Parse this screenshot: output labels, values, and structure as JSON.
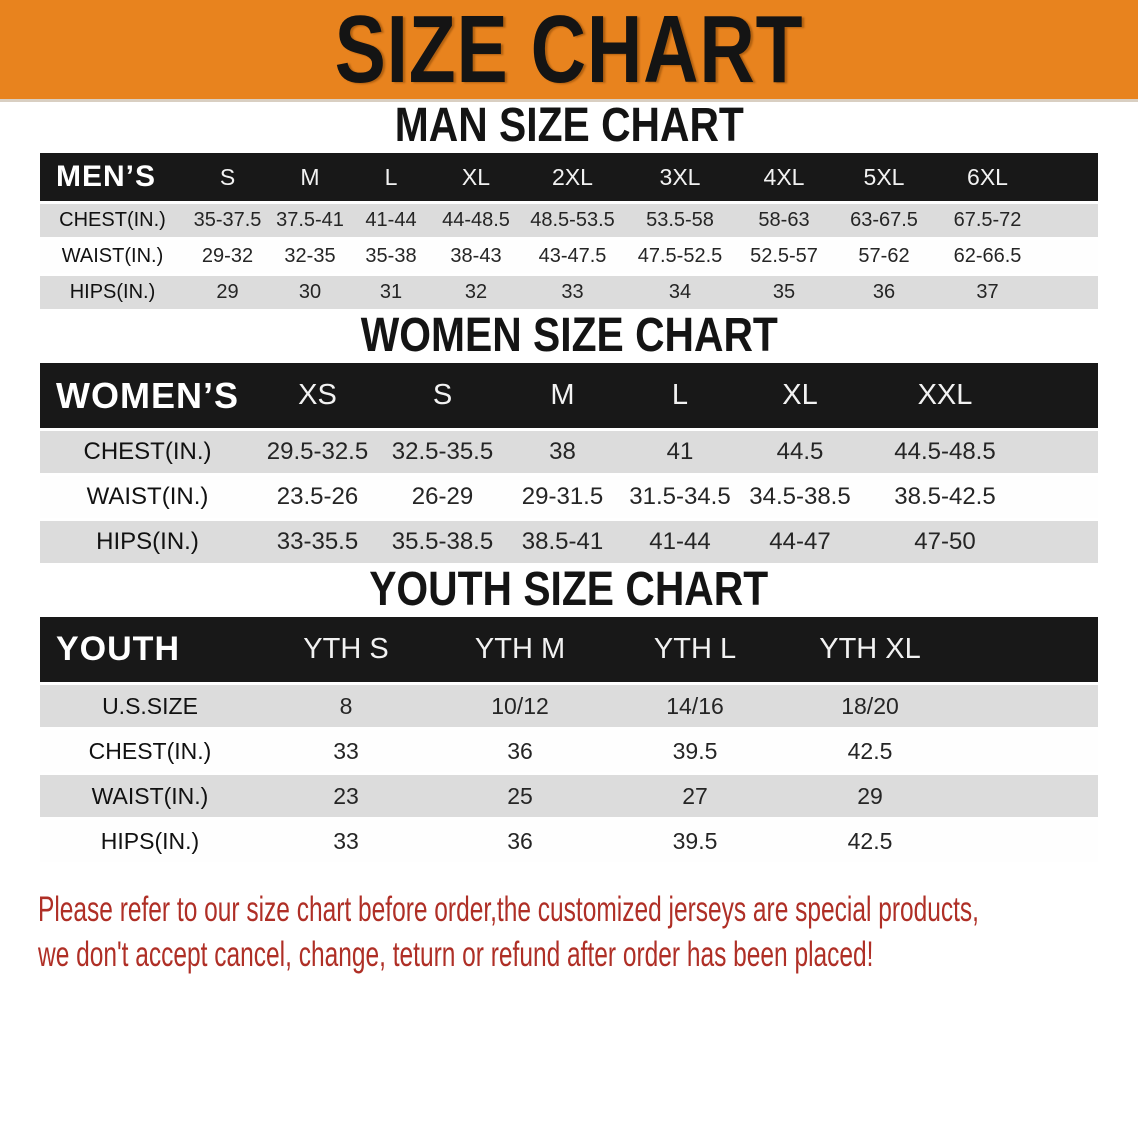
{
  "colors": {
    "banner_bg": "#E8831E",
    "bar_bg": "#181818",
    "row_alt": "#DCDCDC",
    "disclaimer": "#AF2F26"
  },
  "banner": {
    "title": "SIZE CHART"
  },
  "sections": [
    {
      "heading": "MAN SIZE CHART",
      "corner_label": "MEN’S",
      "columns": [
        "S",
        "M",
        "L",
        "XL",
        "2XL",
        "3XL",
        "4XL",
        "5XL",
        "6XL"
      ],
      "rows": [
        {
          "label": "CHEST(IN.)",
          "values": [
            "35-37.5",
            "37.5-41",
            "41-44",
            "44-48.5",
            "48.5-53.5",
            "53.5-58",
            "58-63",
            "63-67.5",
            "67.5-72"
          ]
        },
        {
          "label": "WAIST(IN.)",
          "values": [
            "29-32",
            "32-35",
            "35-38",
            "38-43",
            "43-47.5",
            "47.5-52.5",
            "52.5-57",
            "57-62",
            "62-66.5"
          ]
        },
        {
          "label": "HIPS(IN.)",
          "values": [
            "29",
            "30",
            "31",
            "32",
            "33",
            "34",
            "35",
            "36",
            "37"
          ]
        }
      ]
    },
    {
      "heading": "WOMEN SIZE CHART",
      "corner_label": "WOMEN’S",
      "columns": [
        "XS",
        "S",
        "M",
        "L",
        "XL",
        "XXL"
      ],
      "rows": [
        {
          "label": "CHEST(IN.)",
          "values": [
            "29.5-32.5",
            "32.5-35.5",
            "38",
            "41",
            "44.5",
            "44.5-48.5"
          ]
        },
        {
          "label": "WAIST(IN.)",
          "values": [
            "23.5-26",
            "26-29",
            "29-31.5",
            "31.5-34.5",
            "34.5-38.5",
            "38.5-42.5"
          ]
        },
        {
          "label": "HIPS(IN.)",
          "values": [
            "33-35.5",
            "35.5-38.5",
            "38.5-41",
            "41-44",
            "44-47",
            "47-50"
          ]
        }
      ]
    },
    {
      "heading": "YOUTH SIZE CHART",
      "corner_label": "YOUTH",
      "columns": [
        "YTH S",
        "YTH M",
        "YTH L",
        "YTH XL"
      ],
      "rows": [
        {
          "label": "U.S.SIZE",
          "values": [
            "8",
            "10/12",
            "14/16",
            "18/20"
          ]
        },
        {
          "label": "CHEST(IN.)",
          "values": [
            "33",
            "36",
            "39.5",
            "42.5"
          ]
        },
        {
          "label": "WAIST(IN.)",
          "values": [
            "23",
            "25",
            "27",
            "29"
          ]
        },
        {
          "label": "HIPS(IN.)",
          "values": [
            "33",
            "36",
            "39.5",
            "42.5"
          ]
        }
      ]
    }
  ],
  "disclaimer": {
    "line1": "Please refer to our size chart before order,the customized jerseys are special products,",
    "line2": "we don't accept cancel, change, teturn or refund after order has been placed!"
  }
}
